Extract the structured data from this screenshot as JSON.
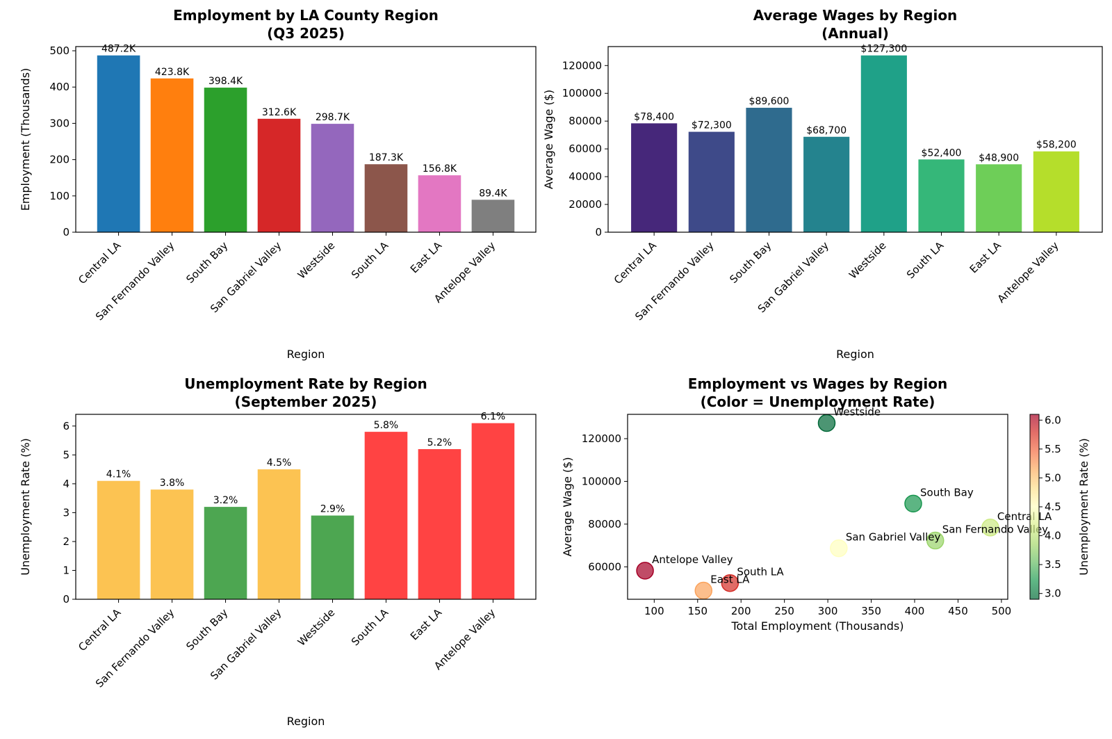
{
  "chart_data": [
    {
      "id": "employment",
      "type": "bar",
      "title_lines": [
        "Employment by LA County Region",
        "(Q3 2025)"
      ],
      "xlabel": "Region",
      "ylabel": "Employment (Thousands)",
      "categories": [
        "Central LA",
        "San Fernando Valley",
        "South Bay",
        "San Gabriel Valley",
        "Westside",
        "South LA",
        "East LA",
        "Antelope Valley"
      ],
      "values": [
        487.2,
        423.8,
        398.4,
        312.6,
        298.7,
        187.3,
        156.8,
        89.4
      ],
      "value_labels": [
        "487.2K",
        "423.8K",
        "398.4K",
        "312.6K",
        "298.7K",
        "187.3K",
        "156.8K",
        "89.4K"
      ],
      "colors": [
        "#1f77b4",
        "#ff7f0e",
        "#2ca02c",
        "#d62728",
        "#9467bd",
        "#8c564b",
        "#e377c2",
        "#7f7f7f"
      ],
      "ylim": [
        0,
        511.56
      ],
      "yticks": [
        0,
        100,
        200,
        300,
        400,
        500
      ],
      "ytick_labels": [
        "0",
        "100",
        "200",
        "300",
        "400",
        "500"
      ]
    },
    {
      "id": "wages",
      "type": "bar",
      "title_lines": [
        "Average Wages by Region",
        "(Annual)"
      ],
      "xlabel": "Region",
      "ylabel": "Average Wage ($)",
      "categories": [
        "Central LA",
        "San Fernando Valley",
        "South Bay",
        "San Gabriel Valley",
        "Westside",
        "South LA",
        "East LA",
        "Antelope Valley"
      ],
      "values": [
        78400,
        72300,
        89600,
        68700,
        127300,
        52400,
        48900,
        58200
      ],
      "value_labels": [
        "$78,400",
        "$72,300",
        "$89,600",
        "$68,700",
        "$127,300",
        "$52,400",
        "$48,900",
        "$58,200"
      ],
      "colors": [
        "#46277a",
        "#3e4a89",
        "#2f6b8e",
        "#24838e",
        "#1fa188",
        "#35b779",
        "#6ece58",
        "#b5de2b"
      ],
      "ylim": [
        0,
        133665
      ],
      "yticks": [
        0,
        20000,
        40000,
        60000,
        80000,
        100000,
        120000
      ],
      "ytick_labels": [
        "0",
        "20000",
        "40000",
        "60000",
        "80000",
        "100000",
        "120000"
      ]
    },
    {
      "id": "unemployment",
      "type": "bar",
      "title_lines": [
        "Unemployment Rate by Region",
        "(September 2025)"
      ],
      "xlabel": "Region",
      "ylabel": "Unemployment Rate (%)",
      "categories": [
        "Central LA",
        "San Fernando Valley",
        "South Bay",
        "San Gabriel Valley",
        "Westside",
        "South LA",
        "East LA",
        "Antelope Valley"
      ],
      "values": [
        4.1,
        3.8,
        3.2,
        4.5,
        2.9,
        5.8,
        5.2,
        6.1
      ],
      "value_labels": [
        "4.1%",
        "3.8%",
        "3.2%",
        "4.5%",
        "2.9%",
        "5.8%",
        "5.2%",
        "6.1%"
      ],
      "colors": [
        "#fcb934",
        "#fcb934",
        "#2e9632",
        "#fcb934",
        "#2e9632",
        "#ff2222",
        "#ff2222",
        "#ff2222"
      ],
      "bar_opacity": 0.85,
      "ylim": [
        0,
        6.405
      ],
      "yticks": [
        0,
        1,
        2,
        3,
        4,
        5,
        6
      ],
      "ytick_labels": [
        "0",
        "1",
        "2",
        "3",
        "4",
        "5",
        "6"
      ]
    },
    {
      "id": "scatter",
      "type": "scatter",
      "title_lines": [
        "Employment vs Wages by Region",
        "(Color = Unemployment Rate)"
      ],
      "xlabel": "Total Employment (Thousands)",
      "ylabel": "Average Wage ($)",
      "points": [
        {
          "name": "Central LA",
          "x": 487.2,
          "y": 78400,
          "c": 4.1
        },
        {
          "name": "San Fernando Valley",
          "x": 423.8,
          "y": 72300,
          "c": 3.8
        },
        {
          "name": "South Bay",
          "x": 398.4,
          "y": 89600,
          "c": 3.2
        },
        {
          "name": "San Gabriel Valley",
          "x": 312.6,
          "y": 68700,
          "c": 4.5
        },
        {
          "name": "Westside",
          "x": 298.7,
          "y": 127300,
          "c": 2.9
        },
        {
          "name": "South LA",
          "x": 187.3,
          "y": 52400,
          "c": 5.8
        },
        {
          "name": "East LA",
          "x": 156.8,
          "y": 48900,
          "c": 5.2
        },
        {
          "name": "Antelope Valley",
          "x": 89.4,
          "y": 58200,
          "c": 6.1
        }
      ],
      "xlim": [
        69.31,
        507.29
      ],
      "ylim": [
        44820,
        131380
      ],
      "xticks": [
        100,
        150,
        200,
        250,
        300,
        350,
        400,
        450,
        500
      ],
      "xtick_labels": [
        "100",
        "150",
        "200",
        "250",
        "300",
        "350",
        "400",
        "450",
        "500"
      ],
      "yticks": [
        60000,
        80000,
        100000,
        120000
      ],
      "ytick_labels": [
        "60000",
        "80000",
        "100000",
        "120000"
      ],
      "colormap": "RdYlGn_r",
      "colormap_stops": [
        "#006837",
        "#1a9850",
        "#66bd63",
        "#a6d96a",
        "#d9ef8b",
        "#ffffbf",
        "#fee08b",
        "#fdae61",
        "#f46d43",
        "#d73027",
        "#a50026"
      ],
      "marker_opacity": 0.7,
      "colorbar": {
        "label": "Unemployment Rate (%)",
        "range": [
          2.9,
          6.1
        ],
        "ticks": [
          3.0,
          3.5,
          4.0,
          4.5,
          5.0,
          5.5,
          6.0
        ],
        "tick_labels": [
          "3.0",
          "3.5",
          "4.0",
          "4.5",
          "5.0",
          "5.5",
          "6.0"
        ]
      }
    }
  ]
}
